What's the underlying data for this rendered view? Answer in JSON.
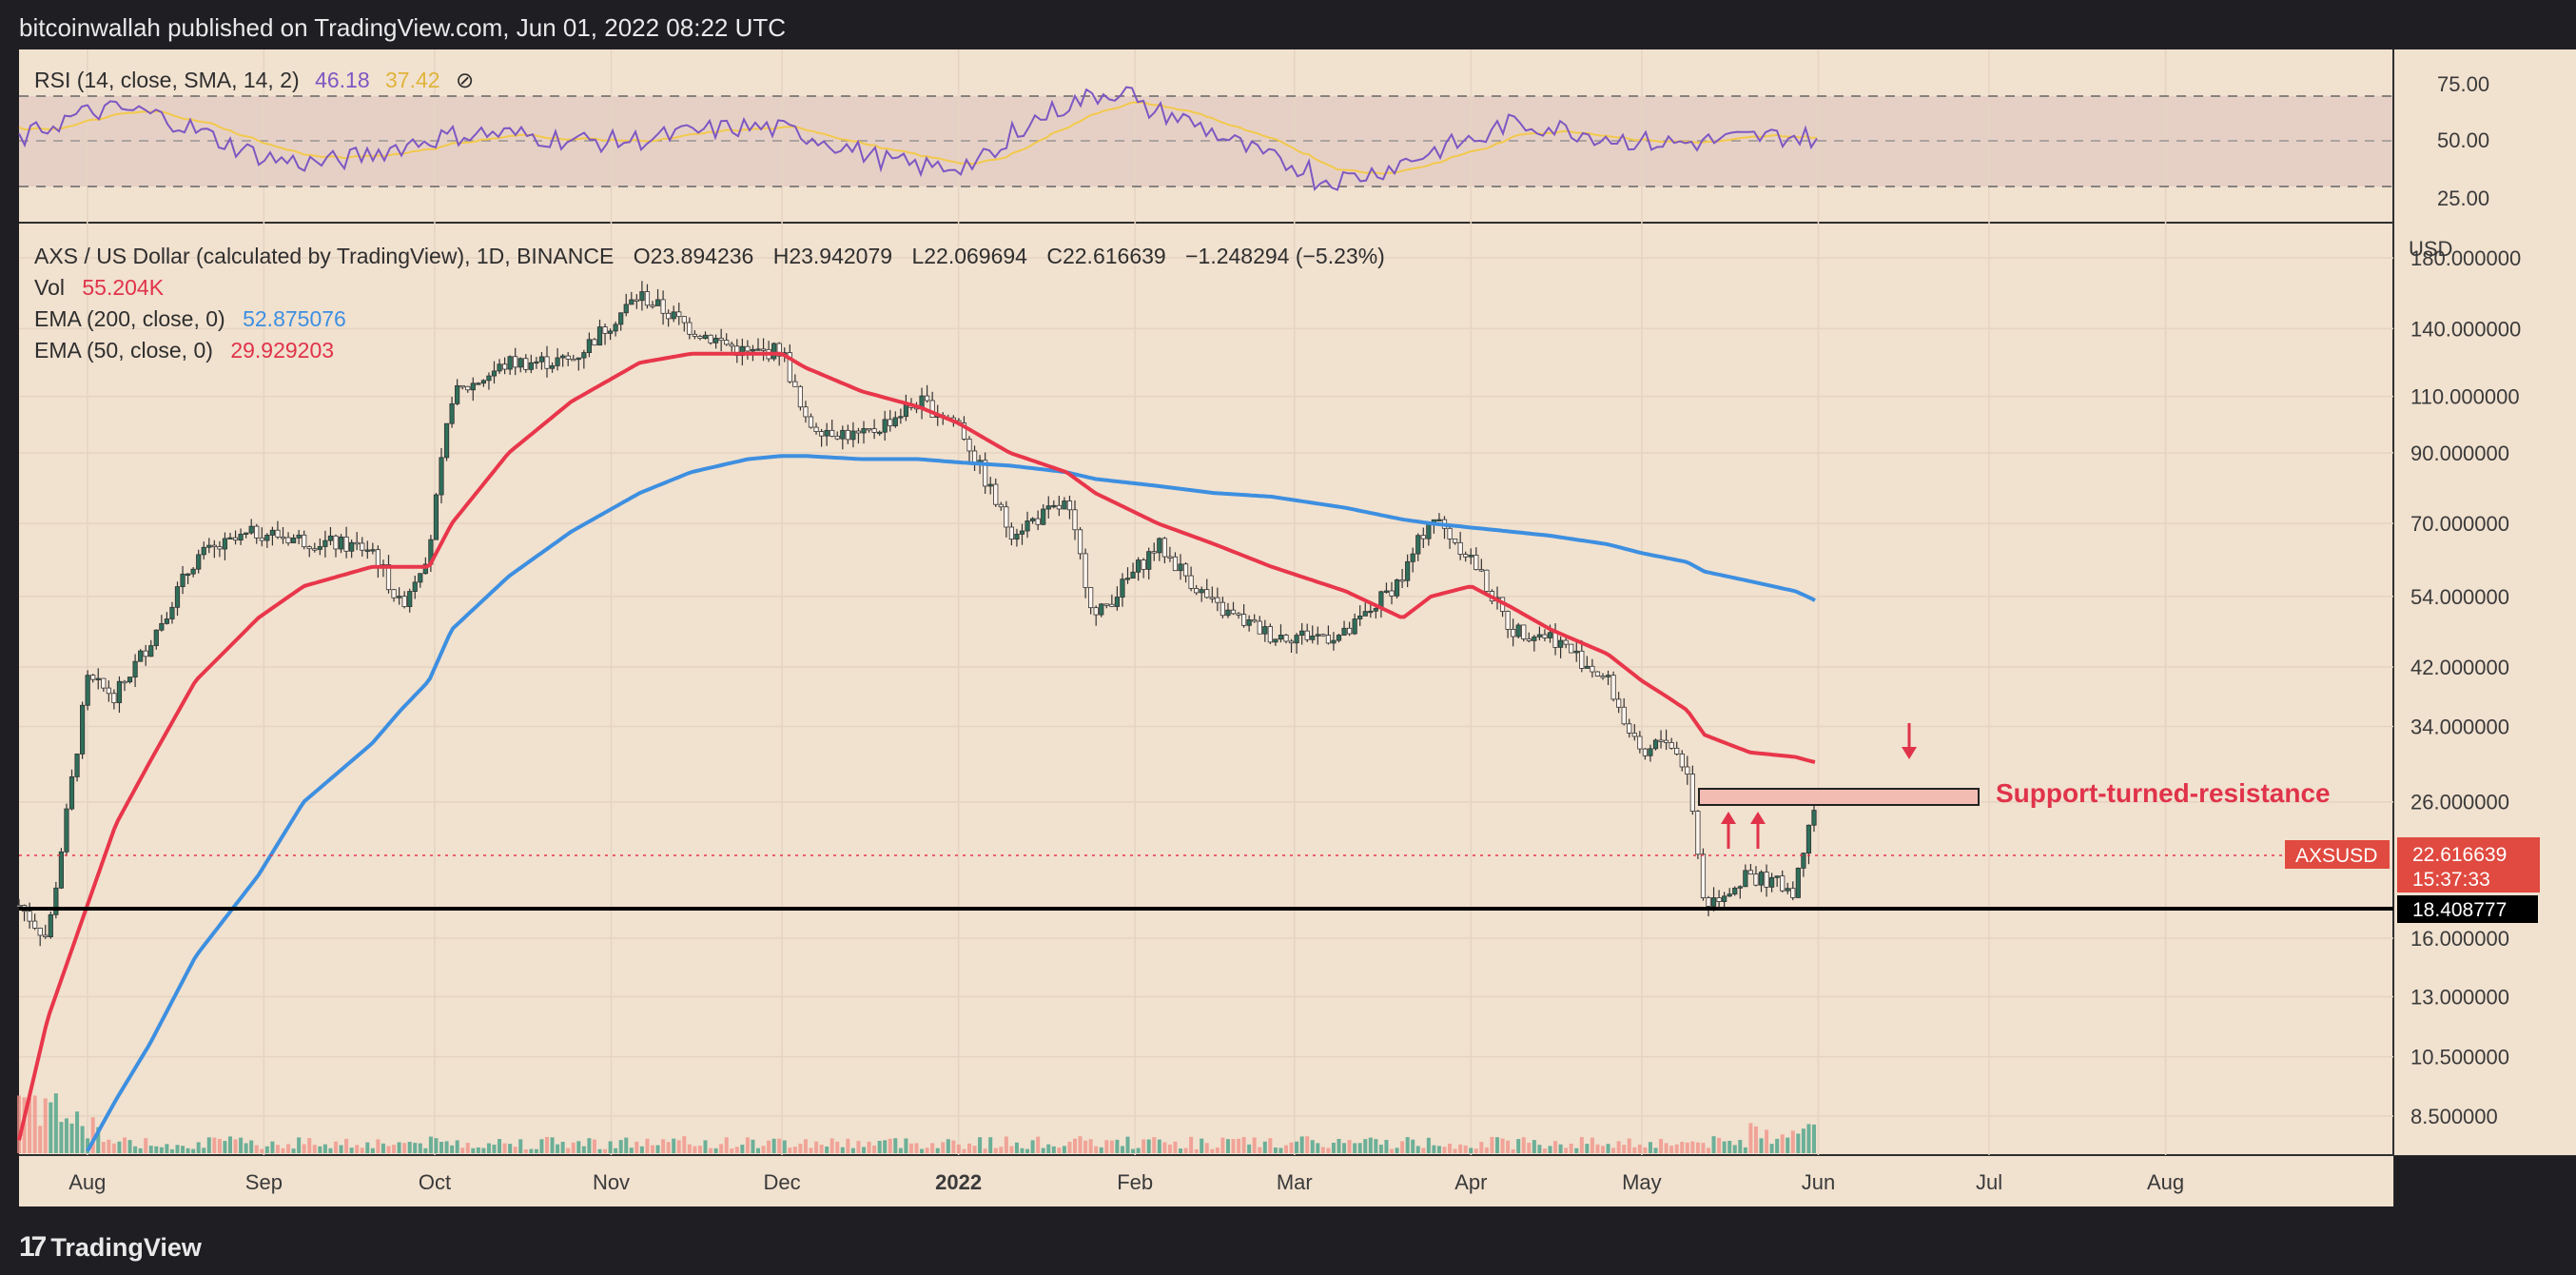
{
  "header": {
    "text": "bitcoinwallah published on TradingView.com, Jun 01, 2022 08:22 UTC"
  },
  "footer": {
    "logo_text": "TradingView",
    "logo_mark": "17"
  },
  "colors": {
    "background": "#f1e1cf",
    "up": "#3e9e84",
    "down": "#f08e84",
    "ema200": "#3d8fe0",
    "ema50": "#e8364a",
    "rsi": "#7e57c2",
    "rsi_sma": "#f2c94c",
    "annotation": "#e0334a"
  },
  "legend": {
    "title": "AXS / US Dollar (calculated by TradingView), 1D, BINANCE",
    "open": "O23.894236",
    "high": "H23.942079",
    "low": "L22.069694",
    "close": "C22.616639",
    "change": "−1.248294 (−5.23%)",
    "vol_label": "Vol",
    "vol_value": "55.204K",
    "ema200_label": "EMA (200, close, 0)",
    "ema200_value": "52.875076",
    "ema50_label": "EMA (50, close, 0)",
    "ema50_value": "29.929203"
  },
  "rsi_panel": {
    "legend_label": "RSI (14, close, SMA, 14, 2)",
    "rsi_value": "46.18",
    "sma_value": "37.42",
    "ticks": [
      "75.00",
      "50.00",
      "25.00"
    ]
  },
  "price_axis": {
    "currency": "USD",
    "ticks": [
      "180.000000",
      "140.000000",
      "110.000000",
      "90.000000",
      "70.000000",
      "54.000000",
      "42.000000",
      "34.000000",
      "26.000000",
      "16.000000",
      "13.000000",
      "10.500000",
      "8.500000"
    ],
    "tick_values": [
      180,
      140,
      110,
      90,
      70,
      54,
      42,
      34,
      26,
      16,
      13,
      10.5,
      8.5
    ],
    "last_symbol": "AXSUSD",
    "last_price": "22.616639",
    "countdown": "15:37:33",
    "support_price": "18.408777"
  },
  "time_axis": {
    "months": [
      "Aug",
      "Sep",
      "Oct",
      "Nov",
      "Dec",
      "2022",
      "Feb",
      "Mar",
      "Apr",
      "May",
      "Jun",
      "Jul",
      "Aug"
    ]
  },
  "annotation": {
    "label": "Support-turned-resistance"
  },
  "chart_data": {
    "type": "line",
    "title": "AXS / US Dollar (calculated by TradingView), 1D, BINANCE",
    "y_scale": "log",
    "ylim": [
      7.5,
      200
    ],
    "x": [
      "2021-07-20",
      "2021-07-25",
      "2021-08-01",
      "2021-08-06",
      "2021-08-12",
      "2021-08-20",
      "2021-08-31",
      "2021-09-08",
      "2021-09-20",
      "2021-09-25",
      "2021-09-30",
      "2021-10-04",
      "2021-10-14",
      "2021-10-25",
      "2021-11-06",
      "2021-11-15",
      "2021-11-25",
      "2021-12-01",
      "2021-12-05",
      "2021-12-15",
      "2021-12-25",
      "2022-01-01",
      "2022-01-10",
      "2022-01-20",
      "2022-01-25",
      "2022-02-05",
      "2022-02-15",
      "2022-02-25",
      "2022-03-10",
      "2022-03-20",
      "2022-03-25",
      "2022-04-01",
      "2022-04-08",
      "2022-04-15",
      "2022-04-25",
      "2022-05-01",
      "2022-05-05",
      "2022-05-09",
      "2022-05-12",
      "2022-05-20",
      "2022-05-28",
      "2022-05-31",
      "2022-06-01"
    ],
    "series": [
      {
        "name": "AXS / US Dollar",
        "values": [
          18,
          16,
          40,
          38,
          46,
          62,
          68,
          66,
          64,
          52,
          64,
          110,
          124,
          125,
          158,
          140,
          128,
          130,
          100,
          95,
          108,
          100,
          68,
          75,
          50,
          65,
          52,
          47,
          47,
          58,
          72,
          62,
          48,
          47,
          40,
          30,
          33,
          29,
          18,
          20,
          19,
          26.5,
          22.6
        ]
      },
      {
        "name": "EMA (200, close, 0)",
        "values": [
          null,
          null,
          7.5,
          9,
          11,
          15,
          20,
          26,
          32,
          36,
          40,
          48,
          58,
          68,
          78,
          84,
          88,
          89,
          89,
          88,
          88,
          87,
          86,
          84,
          82,
          80,
          78,
          77,
          74,
          71,
          70,
          69,
          68,
          67,
          65,
          63,
          62,
          61,
          59,
          57,
          55,
          53.5,
          52.9
        ]
      },
      {
        "name": "EMA (50, close, 0)",
        "values": [
          7.8,
          12,
          18,
          24,
          30,
          40,
          50,
          56,
          60,
          60,
          60,
          70,
          90,
          108,
          124,
          128,
          128,
          128,
          122,
          112,
          106,
          100,
          90,
          84,
          78,
          70,
          65,
          60,
          55,
          50,
          54,
          56,
          52,
          48,
          44,
          40,
          38,
          36,
          33,
          31,
          30.5,
          30,
          29.9
        ]
      }
    ]
  }
}
